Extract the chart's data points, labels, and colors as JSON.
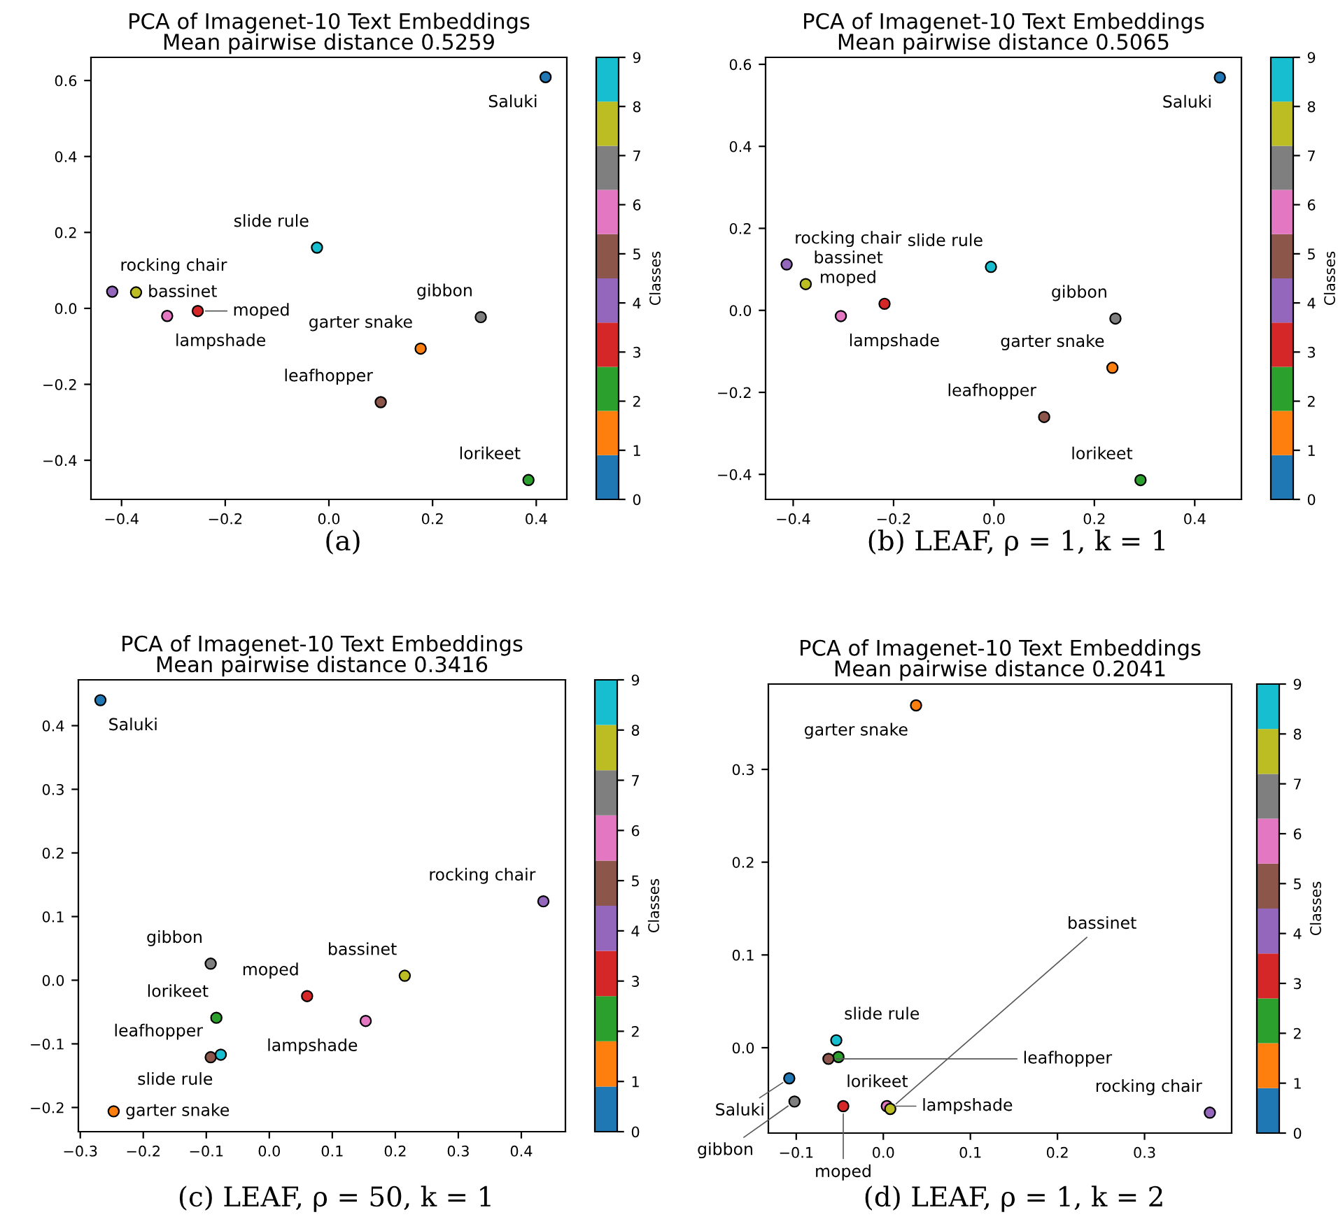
{
  "chart_data": [
    {
      "type": "scatter",
      "title": "PCA of Imagenet-10 Text Embeddings\nMean pairwise distance 0.5259",
      "marker": "circle",
      "grid": false,
      "x": [
        0.418,
        -0.023,
        -0.418,
        -0.372,
        -0.312,
        -0.253,
        0.293,
        0.177,
        0.1,
        0.385
      ],
      "values": [
        0.609,
        0.16,
        0.044,
        0.042,
        -0.02,
        -0.007,
        -0.023,
        -0.106,
        -0.247,
        -0.452
      ],
      "cvalues": [
        0,
        9,
        4,
        8,
        6,
        3,
        7,
        1,
        5,
        2
      ],
      "colors": [
        "#1f77b4",
        "#17becf",
        "#9467bd",
        "#bcbd22",
        "#e377c2",
        "#d62728",
        "#7f7f7f",
        "#ff7f0e",
        "#8c564b",
        "#2ca02c"
      ],
      "clim": [
        0,
        9
      ],
      "cticks": [
        0,
        1,
        2,
        3,
        4,
        5,
        6,
        7,
        8,
        9
      ],
      "clabel": "Classes",
      "xlim": [
        -0.459,
        0.459
      ],
      "ylim": [
        -0.503,
        0.661
      ],
      "xticks": [
        {
          "value": -0.4,
          "label": "−0.4"
        },
        {
          "value": -0.2,
          "label": "−0.2"
        },
        {
          "value": 0,
          "label": "0.0"
        },
        0.2,
        0.4
      ],
      "yticks": [
        {
          "value": -0.4,
          "label": "−0.4"
        },
        {
          "value": -0.2,
          "label": "−0.2"
        },
        {
          "value": 0,
          "label": "0.0"
        },
        0.2,
        0.4,
        0.6
      ],
      "annotations": [
        "(a)",
        {
          "text": "Saluki",
          "x": 0.418,
          "y": 0.609
        },
        {
          "text": "slide rule",
          "x": -0.023,
          "y": 0.16
        },
        {
          "text": "rocking chair",
          "x": -0.418,
          "y": 0.044
        },
        {
          "text": "bassinet",
          "x": -0.372,
          "y": 0.042
        },
        {
          "text": "lampshade",
          "x": -0.312,
          "y": -0.02
        },
        {
          "text": "moped",
          "x": -0.253,
          "y": -0.007
        },
        {
          "text": "gibbon",
          "x": 0.293,
          "y": -0.023
        },
        {
          "text": "garter snake",
          "x": 0.177,
          "y": -0.106
        },
        {
          "text": "leafhopper",
          "x": 0.1,
          "y": -0.247
        },
        {
          "text": "lorikeet",
          "x": 0.385,
          "y": -0.452
        }
      ]
    },
    {
      "type": "scatter",
      "title": "PCA of Imagenet-10 Text Embeddings\nMean pairwise distance 0.5065",
      "marker": "circle",
      "grid": false,
      "x": [
        0.45,
        -0.413,
        -0.375,
        -0.006,
        -0.218,
        -0.305,
        0.242,
        0.236,
        0.1,
        0.292
      ],
      "values": [
        0.568,
        0.112,
        0.064,
        0.106,
        0.016,
        -0.014,
        -0.02,
        -0.14,
        -0.26,
        -0.414
      ],
      "cvalues": [
        0,
        4,
        8,
        9,
        3,
        6,
        7,
        1,
        5,
        2
      ],
      "colors": [
        "#1f77b4",
        "#9467bd",
        "#bcbd22",
        "#17becf",
        "#d62728",
        "#e377c2",
        "#7f7f7f",
        "#ff7f0e",
        "#8c564b",
        "#2ca02c"
      ],
      "clim": [
        0,
        9
      ],
      "cticks": [
        0,
        1,
        2,
        3,
        4,
        5,
        6,
        7,
        8,
        9
      ],
      "clabel": "Classes",
      "xlim": [
        -0.455,
        0.493
      ],
      "ylim": [
        -0.461,
        0.617
      ],
      "xticks": [
        {
          "value": -0.4,
          "label": "−0.4"
        },
        {
          "value": -0.2,
          "label": "−0.2"
        },
        {
          "value": 0,
          "label": "0.0"
        },
        0.2,
        0.4
      ],
      "yticks": [
        {
          "value": -0.4,
          "label": "−0.4"
        },
        {
          "value": -0.2,
          "label": "−0.2"
        },
        {
          "value": 0,
          "label": "0.0"
        },
        0.2,
        0.4,
        0.6
      ],
      "annotations": [
        "(b) LEAF, ρ = 1, k = 1",
        {
          "text": "Saluki",
          "x": 0.45,
          "y": 0.568
        },
        {
          "text": "rocking chair",
          "x": -0.413,
          "y": 0.112
        },
        {
          "text": "bassinet",
          "x": -0.375,
          "y": 0.064
        },
        {
          "text": "slide rule",
          "x": -0.006,
          "y": 0.106
        },
        {
          "text": "moped",
          "x": -0.218,
          "y": 0.016
        },
        {
          "text": "lampshade",
          "x": -0.305,
          "y": -0.014
        },
        {
          "text": "gibbon",
          "x": 0.242,
          "y": -0.02
        },
        {
          "text": "garter snake",
          "x": 0.236,
          "y": -0.14
        },
        {
          "text": "leafhopper",
          "x": 0.1,
          "y": -0.26
        },
        {
          "text": "lorikeet",
          "x": 0.292,
          "y": -0.414
        }
      ]
    },
    {
      "type": "scatter",
      "title": "PCA of Imagenet-10 Text Embeddings\nMean pairwise distance 0.3416",
      "marker": "circle",
      "grid": false,
      "x": [
        -0.268,
        0.435,
        -0.093,
        0.215,
        0.06,
        -0.084,
        0.153,
        -0.093,
        -0.077,
        -0.247
      ],
      "values": [
        0.44,
        0.124,
        0.026,
        0.007,
        -0.025,
        -0.059,
        -0.064,
        -0.121,
        -0.117,
        -0.206
      ],
      "cvalues": [
        0,
        4,
        7,
        8,
        3,
        2,
        6,
        5,
        9,
        1
      ],
      "colors": [
        "#1f77b4",
        "#9467bd",
        "#7f7f7f",
        "#bcbd22",
        "#d62728",
        "#2ca02c",
        "#e377c2",
        "#8c564b",
        "#17becf",
        "#ff7f0e"
      ],
      "clim": [
        0,
        9
      ],
      "cticks": [
        0,
        1,
        2,
        3,
        4,
        5,
        6,
        7,
        8,
        9
      ],
      "clabel": "Classes",
      "xlim": [
        -0.303,
        0.47
      ],
      "ylim": [
        -0.238,
        0.472
      ],
      "xticks": [
        {
          "value": -0.3,
          "label": "−0.3"
        },
        {
          "value": -0.2,
          "label": "−0.2"
        },
        {
          "value": -0.1,
          "label": "−0.1"
        },
        {
          "value": 0,
          "label": "0.0"
        },
        0.1,
        0.2,
        0.3,
        0.4
      ],
      "yticks": [
        {
          "value": -0.2,
          "label": "−0.2"
        },
        {
          "value": -0.1,
          "label": "−0.1"
        },
        {
          "value": 0,
          "label": "0.0"
        },
        0.1,
        0.2,
        0.3,
        0.4
      ],
      "annotations": [
        "(c) LEAF, ρ = 50, k = 1",
        {
          "text": "Saluki",
          "x": -0.268,
          "y": 0.44
        },
        {
          "text": "rocking chair",
          "x": 0.435,
          "y": 0.124
        },
        {
          "text": "gibbon",
          "x": -0.093,
          "y": 0.026
        },
        {
          "text": "bassinet",
          "x": 0.215,
          "y": 0.007
        },
        {
          "text": "moped",
          "x": 0.06,
          "y": -0.025
        },
        {
          "text": "lorikeet",
          "x": -0.084,
          "y": -0.059
        },
        {
          "text": "lampshade",
          "x": 0.153,
          "y": -0.064
        },
        {
          "text": "leafhopper",
          "x": -0.093,
          "y": -0.121
        },
        {
          "text": "slide rule",
          "x": -0.077,
          "y": -0.117
        },
        {
          "text": "garter snake",
          "x": -0.247,
          "y": -0.206
        }
      ]
    },
    {
      "type": "scatter",
      "title": "PCA of Imagenet-10 Text Embeddings\nMean pairwise distance 0.2041",
      "marker": "circle",
      "grid": false,
      "x": [
        0.0376,
        -0.054,
        -0.0515,
        -0.063,
        -0.108,
        -0.102,
        -0.046,
        0.004,
        0.008,
        0.375
      ],
      "values": [
        0.369,
        0.008,
        -0.01,
        -0.012,
        -0.033,
        -0.058,
        -0.063,
        -0.063,
        -0.066,
        -0.07
      ],
      "cvalues": [
        1,
        9,
        2,
        5,
        0,
        7,
        3,
        6,
        8,
        4
      ],
      "colors": [
        "#ff7f0e",
        "#17becf",
        "#2ca02c",
        "#8c564b",
        "#1f77b4",
        "#7f7f7f",
        "#d62728",
        "#e377c2",
        "#bcbd22",
        "#9467bd"
      ],
      "clim": [
        0,
        9
      ],
      "cticks": [
        0,
        1,
        2,
        3,
        4,
        5,
        6,
        7,
        8,
        9
      ],
      "clabel": "Classes",
      "xlim": [
        -0.132,
        0.4
      ],
      "ylim": [
        -0.092,
        0.392
      ],
      "xticks": [
        {
          "value": -0.1,
          "label": "−0.1"
        },
        {
          "value": 0,
          "label": "0.0"
        },
        0.1,
        0.2,
        0.3
      ],
      "yticks": [
        {
          "value": 0,
          "label": "0.0"
        },
        0.1,
        0.2,
        0.3
      ],
      "annotations": [
        "(d) LEAF, ρ = 1, k = 2",
        {
          "text": "garter snake",
          "x": 0.0376,
          "y": 0.369
        },
        {
          "text": "slide rule",
          "x": -0.054,
          "y": 0.008
        },
        {
          "text": "lorikeet",
          "x": -0.0515,
          "y": -0.01
        },
        {
          "text": "leafhopper",
          "x": -0.063,
          "y": -0.012
        },
        {
          "text": "Saluki",
          "x": -0.108,
          "y": -0.033
        },
        {
          "text": "gibbon",
          "x": -0.102,
          "y": -0.058
        },
        {
          "text": "moped",
          "x": -0.046,
          "y": -0.063
        },
        {
          "text": "lampshade",
          "x": 0.004,
          "y": -0.063
        },
        {
          "text": "bassinet",
          "x": 0.008,
          "y": -0.066
        },
        {
          "text": "rocking chair",
          "x": 0.375,
          "y": -0.07
        }
      ]
    }
  ]
}
